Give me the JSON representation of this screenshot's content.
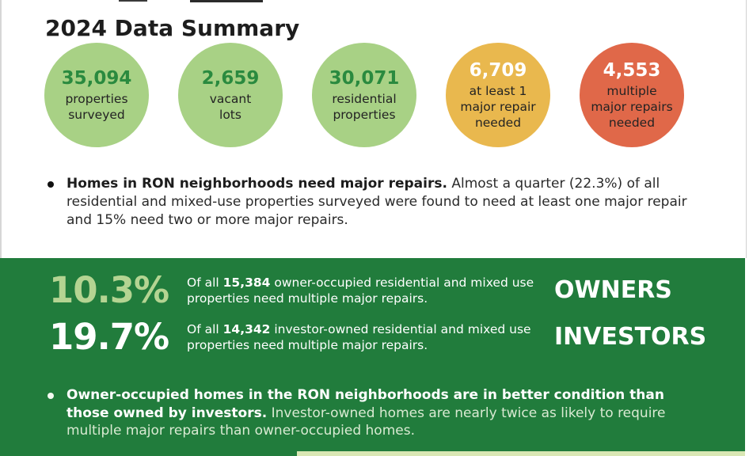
{
  "page": {
    "title": "2024 Data Summary"
  },
  "stat_circles": [
    {
      "value": "35,094",
      "label_lines": [
        "properties",
        "surveyed"
      ],
      "fill_color": "#a8d185",
      "value_color": "#2a8a3f"
    },
    {
      "value": "2,659",
      "label_lines": [
        "vacant",
        "lots"
      ],
      "fill_color": "#a8d185",
      "value_color": "#2a8a3f"
    },
    {
      "value": "30,071",
      "label_lines": [
        "residential",
        "properties"
      ],
      "fill_color": "#a8d185",
      "value_color": "#2a8a3f"
    },
    {
      "value": "6,709",
      "label_lines": [
        "at least 1",
        "major repair",
        "needed"
      ],
      "fill_color": "#e9b84e",
      "value_color": "#ffffff"
    },
    {
      "value": "4,553",
      "label_lines": [
        "multiple",
        "major repairs",
        "needed"
      ],
      "fill_color": "#e06849",
      "value_color": "#ffffff"
    }
  ],
  "bullet_top": {
    "bold": "Homes in RON neighborhoods need major repairs.",
    "regular": " Almost a quarter (22.3%) of all residential and mixed-use properties surveyed were found to need at least one major repair and 15% need two or more major repairs."
  },
  "green_panel": {
    "background": "#217c3c",
    "rows": [
      {
        "percent": "10.3%",
        "percent_color": "#b4d492",
        "desc_prefix": "Of all ",
        "desc_number": "15,384",
        "desc_suffix": " owner-occupied residential and mixed use properties need multiple major repairs.",
        "group_label": "OWNERS"
      },
      {
        "percent": "19.7%",
        "percent_color": "#ffffff",
        "desc_prefix": "Of all ",
        "desc_number": "14,342",
        "desc_suffix": " investor-owned residential and mixed use properties need multiple major repairs.",
        "group_label": "INVESTORS"
      }
    ],
    "bullet": {
      "bold": "Owner-occupied homes in the RON neighborhoods are in better condition than those owned by investors.",
      "regular": " Investor-owned homes are nearly twice as likely to require multiple major repairs than owner-occupied homes."
    }
  },
  "colors": {
    "circle_green": "#a8d185",
    "circle_gold": "#e9b84e",
    "circle_orange": "#e06849",
    "number_green": "#2a8a3f",
    "band_green": "#217c3c",
    "pale_percent": "#b4d492",
    "pale_body_text": "#d9ead2",
    "bottom_strip": "#d9e7b4"
  }
}
